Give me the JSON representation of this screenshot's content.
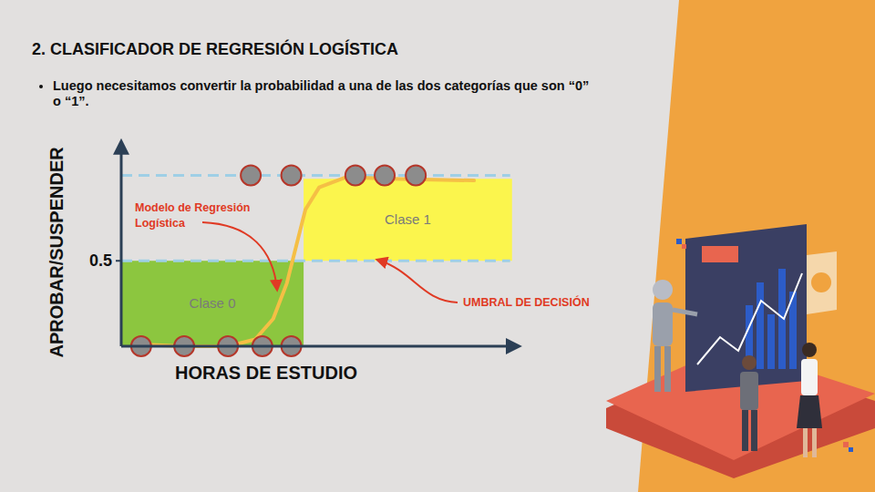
{
  "slide": {
    "title": "2. CLASIFICADOR DE REGRESIÓN LOGÍSTICA",
    "bullet": "Luego necesitamos convertir la probabilidad a una de las dos categorías que son “0” o “1”."
  },
  "chart_data": {
    "type": "scatter",
    "x_label": "HORAS DE ESTUDIO",
    "y_label": "APROBAR/SUSPENDER",
    "xlim": [
      0,
      11
    ],
    "ylim": [
      0,
      1.2
    ],
    "yticks": [
      0.5
    ],
    "tick_labels": "y",
    "grid": false,
    "series": [
      {
        "type": "scatter",
        "color": "#8c8c8c",
        "marker": "circle",
        "x": [
          0.55,
          1.74,
          2.95,
          3.9,
          4.7,
          3.58,
          4.7,
          6.47,
          7.28,
          8.14
        ],
        "values": [
          0,
          0,
          0,
          0,
          0,
          1,
          1,
          1,
          1,
          1
        ]
      },
      {
        "type": "line",
        "color": "#f5bf45",
        "line_style": "solid",
        "x": [
          0.55,
          1.69,
          2.95,
          3.7,
          4.2,
          4.58,
          4.84,
          5.09,
          5.47,
          6.22,
          7.48,
          9.75
        ],
        "values": [
          0.01,
          0,
          0,
          0.04,
          0.16,
          0.37,
          0.59,
          0.8,
          0.93,
          0.99,
          0.98,
          0.97
        ]
      }
    ],
    "reference_lines": [
      1,
      0.5
    ],
    "regions": [
      {
        "label": "Clase 0",
        "color": "#8cc63f",
        "x": [
          0,
          5.04
        ],
        "y": [
          0,
          0.5
        ]
      },
      {
        "label": "Clase 1",
        "color": "#fbf54d",
        "x": [
          5.04,
          10.8
        ],
        "y": [
          0.5,
          0.98
        ]
      }
    ],
    "annotations": [
      {
        "text": "Modelo de Regresión Logística"
      },
      {
        "text": "UMBRAL DE DECISIÓN"
      }
    ]
  }
}
